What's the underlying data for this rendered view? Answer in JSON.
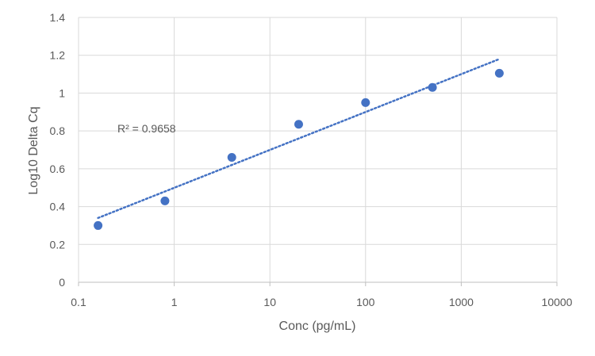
{
  "chart_data": {
    "type": "scatter",
    "xlabel": "Conc (pg/mL)",
    "ylabel": "Log10 Delta Cq",
    "x_scale": "log",
    "xlim": [
      0.1,
      10000
    ],
    "ylim": [
      0,
      1.4
    ],
    "x_ticks": [
      "0.1",
      "1",
      "10",
      "100",
      "1000",
      "10000"
    ],
    "y_ticks": [
      "0",
      "0.2",
      "0.4",
      "0.6",
      "0.8",
      "1",
      "1.2",
      "1.4"
    ],
    "grid": true,
    "legend": "none",
    "colors": {
      "point": "#4472C4",
      "trendline": "#4472C4",
      "grid": "#D9D9D9"
    },
    "series": [
      {
        "x": [
          0.16,
          0.8,
          4,
          20,
          100,
          500,
          2500
        ],
        "y": [
          0.3,
          0.43,
          0.66,
          0.835,
          0.95,
          1.03,
          1.105
        ]
      }
    ],
    "trendline": {
      "type": "logarithmic",
      "style": "dotted",
      "x_range": [
        0.16,
        2500
      ],
      "y_range": [
        0.34,
        1.18
      ]
    },
    "annotations": [
      {
        "text": "R² = 0.9658"
      }
    ]
  }
}
